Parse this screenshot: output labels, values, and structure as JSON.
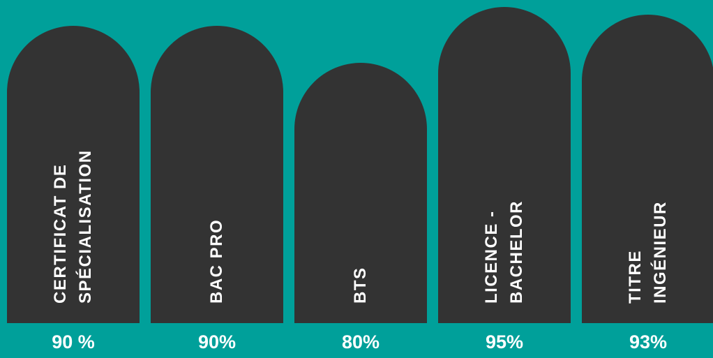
{
  "chart_data": {
    "type": "bar",
    "categories": [
      [
        "CERTIFICAT DE",
        "SPÉCIALISATION"
      ],
      [
        "BAC PRO"
      ],
      [
        "BTS"
      ],
      [
        "LICENCE -",
        "BACHELOR"
      ],
      [
        "TITRE",
        "INGÉNIEUR"
      ]
    ],
    "values": [
      90,
      90,
      80,
      95,
      93
    ],
    "value_labels": [
      "90 %",
      "90%",
      "80%",
      "95%",
      "93%"
    ],
    "title": "",
    "xlabel": "",
    "ylabel": "",
    "grid": false,
    "legend": "none"
  },
  "colors": {
    "background": "#00a09a",
    "bar": "#333333",
    "text": "#ffffff"
  }
}
